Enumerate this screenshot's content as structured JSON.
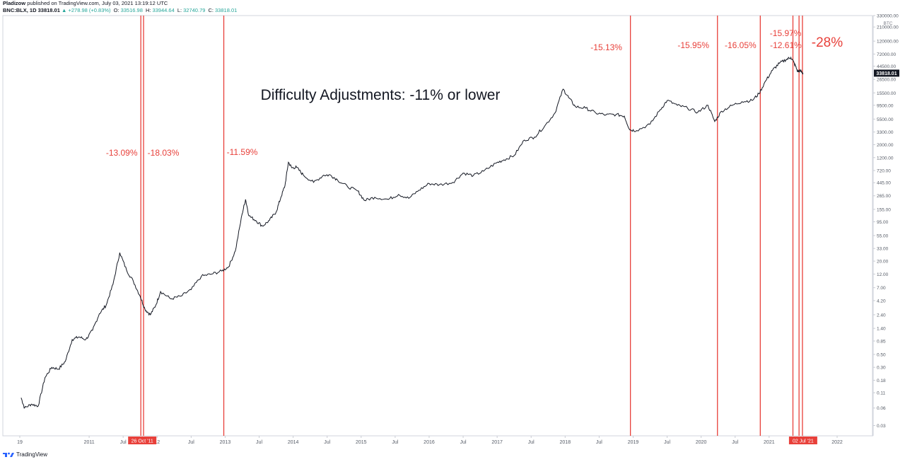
{
  "header": {
    "author": "Pladizow",
    "published": "published on TradingView.com, July 03, 2021 13:19:12 UTC",
    "symbol": "BNC:BLX, 1D",
    "price": "33818.01",
    "change": "▲ +278.98 (+0.83%)",
    "ohlc": [
      {
        "label": "O:",
        "value": "33516.98"
      },
      {
        "label": "H:",
        "value": "33944.64"
      },
      {
        "label": "L:",
        "value": "32740.79"
      },
      {
        "label": "C:",
        "value": "33818.01"
      }
    ]
  },
  "brand": "TradingView",
  "colors": {
    "line": "#131722",
    "marker": "#e8403a",
    "marker_text": "#e8403a",
    "grid": "#c9ccd3",
    "axis_text": "#555b66",
    "price_tag_bg": "#131722",
    "price_tag_text": "#ffffff"
  },
  "chart_data": {
    "type": "line",
    "title": "Difficulty Adjustments: -11% or lower",
    "y_scale": "log",
    "ylim": [
      0.02,
      330000
    ],
    "y_unit": "BTC",
    "y_ticks": [
      0.03,
      0.06,
      0.11,
      0.18,
      0.3,
      0.5,
      0.85,
      1.4,
      2.4,
      4.2,
      7.0,
      12.0,
      20.0,
      33.0,
      55.0,
      95.0,
      155.0,
      265.0,
      445.0,
      720.0,
      1200.0,
      2000.0,
      3300.0,
      5500.0,
      9500.0,
      15500.0,
      26500.0,
      44500.0,
      72000.0,
      120000.0,
      210000.0,
      330000.0
    ],
    "y_tick_labels": [
      "0.03",
      "0.06",
      "0.11",
      "0.18",
      "0.30",
      "0.50",
      "0.85",
      "1.40",
      "2.40",
      "4.20",
      "7.00",
      "12.00",
      "20.00",
      "33.00",
      "55.00",
      "95.00",
      "155.00",
      "265.00",
      "445.00",
      "720.00",
      "1200.00",
      "2000.00",
      "3300.00",
      "5500.00",
      "9500.00",
      "15500.00",
      "26500.00",
      "44500.00",
      "72000.00",
      "120000.00",
      "210000.00",
      "330000.00"
    ],
    "x_ticks": [
      {
        "t": 2009.98,
        "label": "19"
      },
      {
        "t": 2011.0,
        "label": "2011"
      },
      {
        "t": 2011.5,
        "label": "Jul"
      },
      {
        "t": 2012.0,
        "label": "12"
      },
      {
        "t": 2012.5,
        "label": "Jul"
      },
      {
        "t": 2013.0,
        "label": "2013"
      },
      {
        "t": 2013.5,
        "label": "Jul"
      },
      {
        "t": 2014.0,
        "label": "2014"
      },
      {
        "t": 2014.5,
        "label": "Jul"
      },
      {
        "t": 2015.0,
        "label": "2015"
      },
      {
        "t": 2015.5,
        "label": "Jul"
      },
      {
        "t": 2016.0,
        "label": "2016"
      },
      {
        "t": 2016.5,
        "label": "Jul"
      },
      {
        "t": 2017.0,
        "label": "2017"
      },
      {
        "t": 2017.5,
        "label": "Jul"
      },
      {
        "t": 2018.0,
        "label": "2018"
      },
      {
        "t": 2018.5,
        "label": "Jul"
      },
      {
        "t": 2019.0,
        "label": "2019"
      },
      {
        "t": 2019.5,
        "label": "Jul"
      },
      {
        "t": 2020.0,
        "label": "2020"
      },
      {
        "t": 2020.5,
        "label": "Jul"
      },
      {
        "t": 2021.0,
        "label": "2021"
      },
      {
        "t": 2021.5,
        "label": "Jul"
      },
      {
        "t": 2022.0,
        "label": "2022"
      }
    ],
    "series": [
      {
        "points": [
          [
            2010.0,
            0.09
          ],
          [
            2010.05,
            0.06
          ],
          [
            2010.15,
            0.07
          ],
          [
            2010.25,
            0.065
          ],
          [
            2010.35,
            0.2
          ],
          [
            2010.45,
            0.3
          ],
          [
            2010.55,
            0.28
          ],
          [
            2010.65,
            0.38
          ],
          [
            2010.75,
            0.9
          ],
          [
            2010.85,
            1.0
          ],
          [
            2010.95,
            0.9
          ],
          [
            2011.05,
            1.3
          ],
          [
            2011.15,
            2.5
          ],
          [
            2011.25,
            3.5
          ],
          [
            2011.35,
            8.0
          ],
          [
            2011.45,
            28.0
          ],
          [
            2011.55,
            14.0
          ],
          [
            2011.65,
            9.0
          ],
          [
            2011.75,
            5.0
          ],
          [
            2011.82,
            3.0
          ],
          [
            2011.9,
            2.4
          ],
          [
            2011.98,
            3.5
          ],
          [
            2012.05,
            6.0
          ],
          [
            2012.2,
            4.5
          ],
          [
            2012.35,
            5.0
          ],
          [
            2012.5,
            6.5
          ],
          [
            2012.65,
            11.0
          ],
          [
            2012.8,
            12.0
          ],
          [
            2012.95,
            13.5
          ],
          [
            2013.05,
            16.0
          ],
          [
            2013.15,
            30.0
          ],
          [
            2013.25,
            130.0
          ],
          [
            2013.3,
            230.0
          ],
          [
            2013.35,
            120.0
          ],
          [
            2013.45,
            100.0
          ],
          [
            2013.55,
            80.0
          ],
          [
            2013.65,
            100.0
          ],
          [
            2013.75,
            140.0
          ],
          [
            2013.82,
            250.0
          ],
          [
            2013.88,
            400.0
          ],
          [
            2013.93,
            1000.0
          ],
          [
            2013.98,
            800.0
          ],
          [
            2014.05,
            820.0
          ],
          [
            2014.15,
            600.0
          ],
          [
            2014.3,
            450.0
          ],
          [
            2014.45,
            600.0
          ],
          [
            2014.55,
            600.0
          ],
          [
            2014.65,
            500.0
          ],
          [
            2014.8,
            380.0
          ],
          [
            2014.95,
            320.0
          ],
          [
            2015.05,
            220.0
          ],
          [
            2015.2,
            250.0
          ],
          [
            2015.4,
            230.0
          ],
          [
            2015.55,
            280.0
          ],
          [
            2015.7,
            240.0
          ],
          [
            2015.85,
            330.0
          ],
          [
            2016.0,
            430.0
          ],
          [
            2016.15,
            410.0
          ],
          [
            2016.35,
            450.0
          ],
          [
            2016.5,
            650.0
          ],
          [
            2016.65,
            590.0
          ],
          [
            2016.8,
            700.0
          ],
          [
            2016.98,
            960.0
          ],
          [
            2017.1,
            1100.0
          ],
          [
            2017.25,
            1300.0
          ],
          [
            2017.4,
            2400.0
          ],
          [
            2017.55,
            2700.0
          ],
          [
            2017.7,
            4200.0
          ],
          [
            2017.85,
            7000.0
          ],
          [
            2017.97,
            18000.0
          ],
          [
            2018.05,
            13000.0
          ],
          [
            2018.15,
            9000.0
          ],
          [
            2018.3,
            8500.0
          ],
          [
            2018.45,
            7000.0
          ],
          [
            2018.6,
            6500.0
          ],
          [
            2018.75,
            6600.0
          ],
          [
            2018.87,
            6200.0
          ],
          [
            2018.95,
            3600.0
          ],
          [
            2019.05,
            3500.0
          ],
          [
            2019.25,
            4500.0
          ],
          [
            2019.4,
            8000.0
          ],
          [
            2019.5,
            11500.0
          ],
          [
            2019.65,
            9500.0
          ],
          [
            2019.8,
            8500.0
          ],
          [
            2019.95,
            7200.0
          ],
          [
            2020.1,
            9500.0
          ],
          [
            2020.2,
            5000.0
          ],
          [
            2020.3,
            7500.0
          ],
          [
            2020.45,
            9400.0
          ],
          [
            2020.6,
            11000.0
          ],
          [
            2020.75,
            11500.0
          ],
          [
            2020.85,
            15000.0
          ],
          [
            2020.95,
            25000.0
          ],
          [
            2021.05,
            38000.0
          ],
          [
            2021.15,
            50000.0
          ],
          [
            2021.25,
            58000.0
          ],
          [
            2021.32,
            63000.0
          ],
          [
            2021.37,
            50000.0
          ],
          [
            2021.42,
            36000.0
          ],
          [
            2021.46,
            37000.0
          ],
          [
            2021.5,
            33818.0
          ]
        ]
      }
    ],
    "markers": [
      {
        "t": 2011.76,
        "label": "-13.09%"
      },
      {
        "t": 2011.8,
        "label": "-18.03%"
      },
      {
        "t": 2012.98,
        "label": "-11.59%"
      },
      {
        "t": 2018.96,
        "label": "-15.13%"
      },
      {
        "t": 2020.24,
        "label": "-15.95%"
      },
      {
        "t": 2020.87,
        "label": "-16.05%"
      },
      {
        "t": 2021.35,
        "label": "-12.61%"
      },
      {
        "t": 2021.44,
        "label": "-15.97%"
      },
      {
        "t": 2021.49,
        "label": "-28%"
      }
    ],
    "last_price_label": "33818.01",
    "date_tags": [
      "26 Oct '11",
      "02 Jul '21"
    ]
  }
}
